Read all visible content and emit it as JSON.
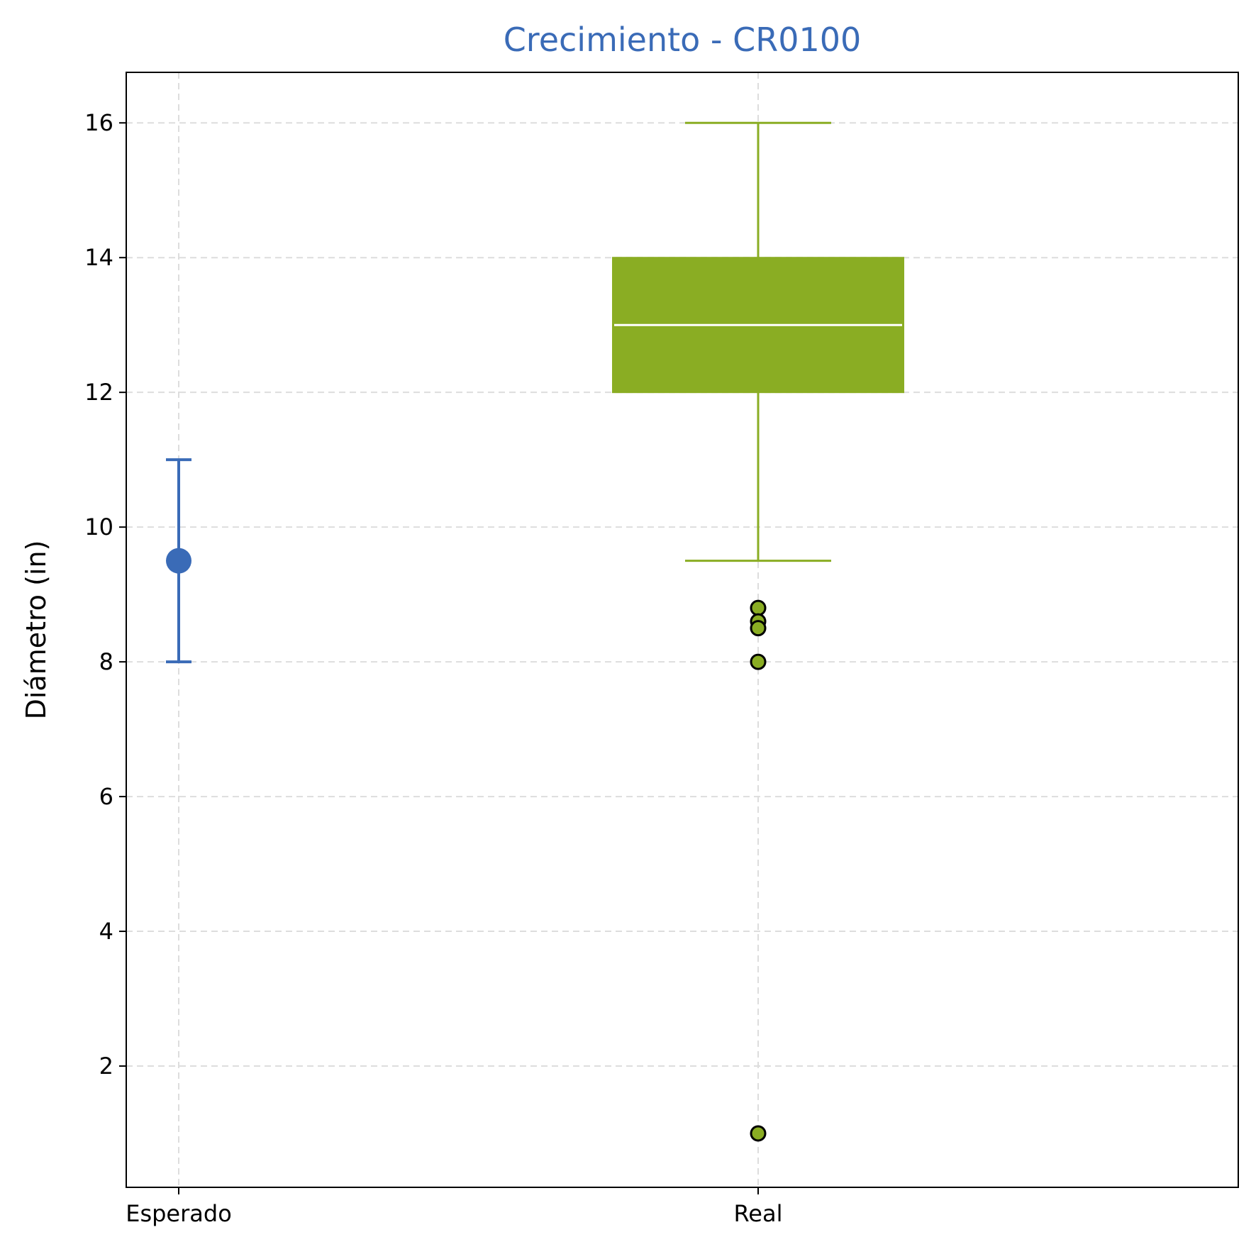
{
  "chart_data": {
    "type": "box",
    "title": "Crecimiento - CR0100",
    "xlabel": "",
    "ylabel": "Diámetro (in)",
    "categories": [
      "Esperado",
      "Real"
    ],
    "ylim": [
      0.2,
      16.75
    ],
    "yticks": [
      2,
      4,
      6,
      8,
      10,
      12,
      14,
      16
    ],
    "grid": true,
    "expected": {
      "category": "Esperado",
      "value": 9.5,
      "low": 8.0,
      "high": 11.0
    },
    "actual": {
      "category": "Real",
      "whisker_low": 9.5,
      "q1": 12.0,
      "median": 13.0,
      "q3": 14.0,
      "whisker_high": 16.0,
      "outliers": [
        8.8,
        8.6,
        8.5,
        8.0,
        1.0
      ]
    }
  },
  "colors": {
    "title": "#3a6bb7",
    "expected": "#3a6bb7",
    "actual": "#8aad23",
    "median": "#ffffff",
    "grid": "#dddddd"
  }
}
